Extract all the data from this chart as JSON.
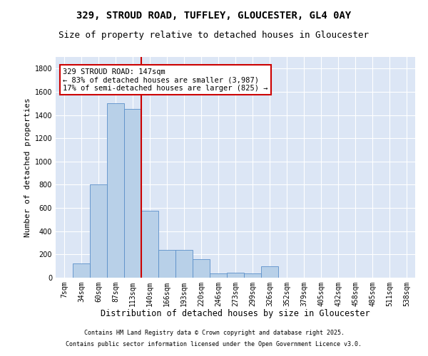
{
  "title1": "329, STROUD ROAD, TUFFLEY, GLOUCESTER, GL4 0AY",
  "title2": "Size of property relative to detached houses in Gloucester",
  "xlabel": "Distribution of detached houses by size in Gloucester",
  "ylabel": "Number of detached properties",
  "categories": [
    "7sqm",
    "34sqm",
    "60sqm",
    "87sqm",
    "113sqm",
    "140sqm",
    "166sqm",
    "193sqm",
    "220sqm",
    "246sqm",
    "273sqm",
    "299sqm",
    "326sqm",
    "352sqm",
    "379sqm",
    "405sqm",
    "432sqm",
    "458sqm",
    "485sqm",
    "511sqm",
    "538sqm"
  ],
  "values": [
    0,
    120,
    800,
    1500,
    1450,
    575,
    240,
    240,
    160,
    35,
    40,
    35,
    100,
    0,
    0,
    0,
    0,
    0,
    0,
    0,
    0
  ],
  "bar_color": "#b8d0e8",
  "bar_edge_color": "#5b8fc9",
  "vline_pos": 4.5,
  "annotation_text": "329 STROUD ROAD: 147sqm\n← 83% of detached houses are smaller (3,987)\n17% of semi-detached houses are larger (825) →",
  "annotation_box_color": "#ffffff",
  "annotation_box_edge": "#cc0000",
  "vline_color": "#cc0000",
  "ylim": [
    0,
    1900
  ],
  "yticks": [
    0,
    200,
    400,
    600,
    800,
    1000,
    1200,
    1400,
    1600,
    1800
  ],
  "background_color": "#dce6f5",
  "footer1": "Contains HM Land Registry data © Crown copyright and database right 2025.",
  "footer2": "Contains public sector information licensed under the Open Government Licence v3.0.",
  "title1_fontsize": 10,
  "title2_fontsize": 9,
  "tick_fontsize": 7,
  "xlabel_fontsize": 8.5,
  "ylabel_fontsize": 8,
  "annotation_fontsize": 7.5,
  "footer_fontsize": 6
}
